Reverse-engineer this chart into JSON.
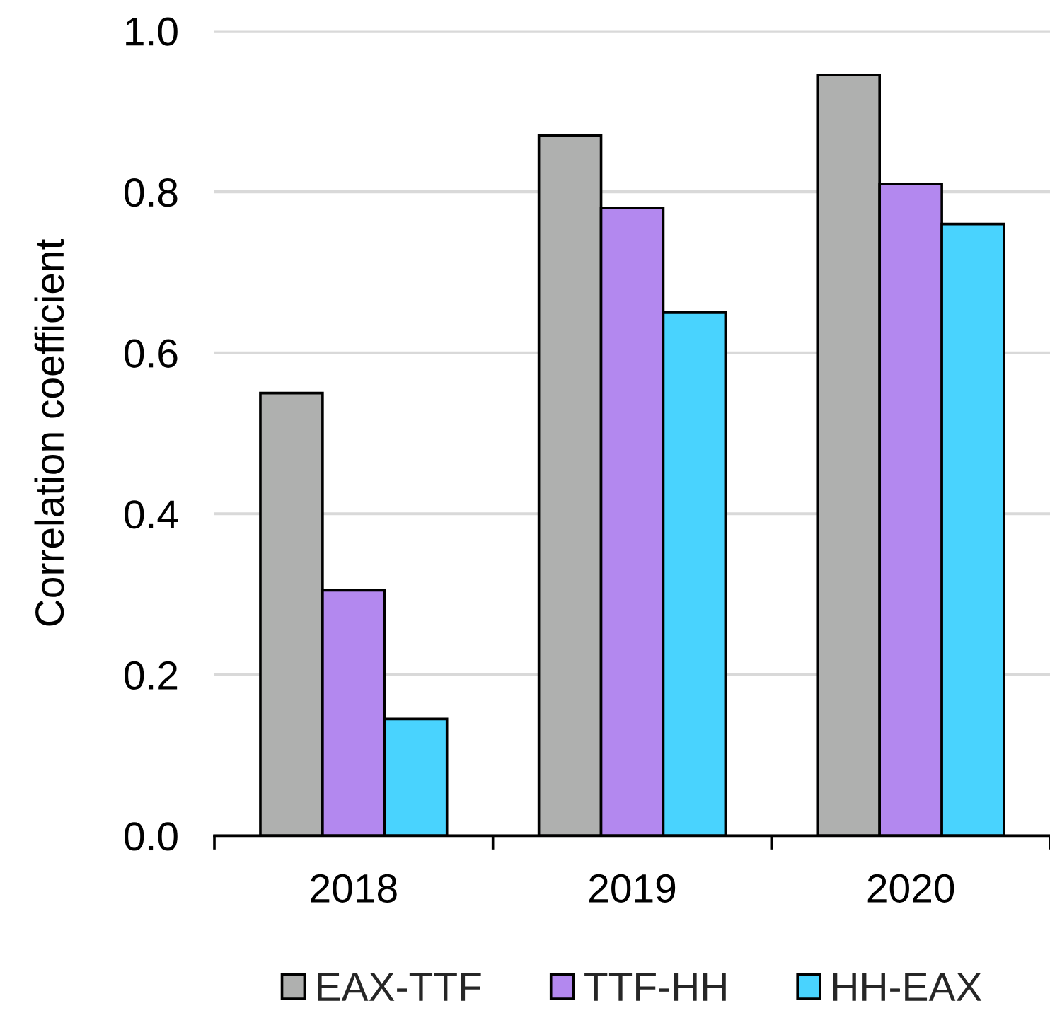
{
  "chart_data": {
    "type": "bar",
    "ylabel": "Correlation coefficient",
    "categories": [
      "2018",
      "2019",
      "2020"
    ],
    "series": [
      {
        "name": "EAX-TTF",
        "color": "#afb0af",
        "values": [
          0.55,
          0.87,
          0.945
        ]
      },
      {
        "name": "TTF-HH",
        "color": "#b388ef",
        "values": [
          0.305,
          0.78,
          0.81
        ]
      },
      {
        "name": "HH-EAX",
        "color": "#49d3fe",
        "values": [
          0.145,
          0.65,
          0.76
        ]
      }
    ],
    "ylim": [
      0,
      1.0
    ],
    "yticks": [
      {
        "value": 0,
        "label": "0.0"
      },
      0.2,
      0.4,
      0.6,
      0.8,
      {
        "value": 1,
        "label": "1.0"
      }
    ],
    "grid": "y",
    "legend": "bottom"
  }
}
